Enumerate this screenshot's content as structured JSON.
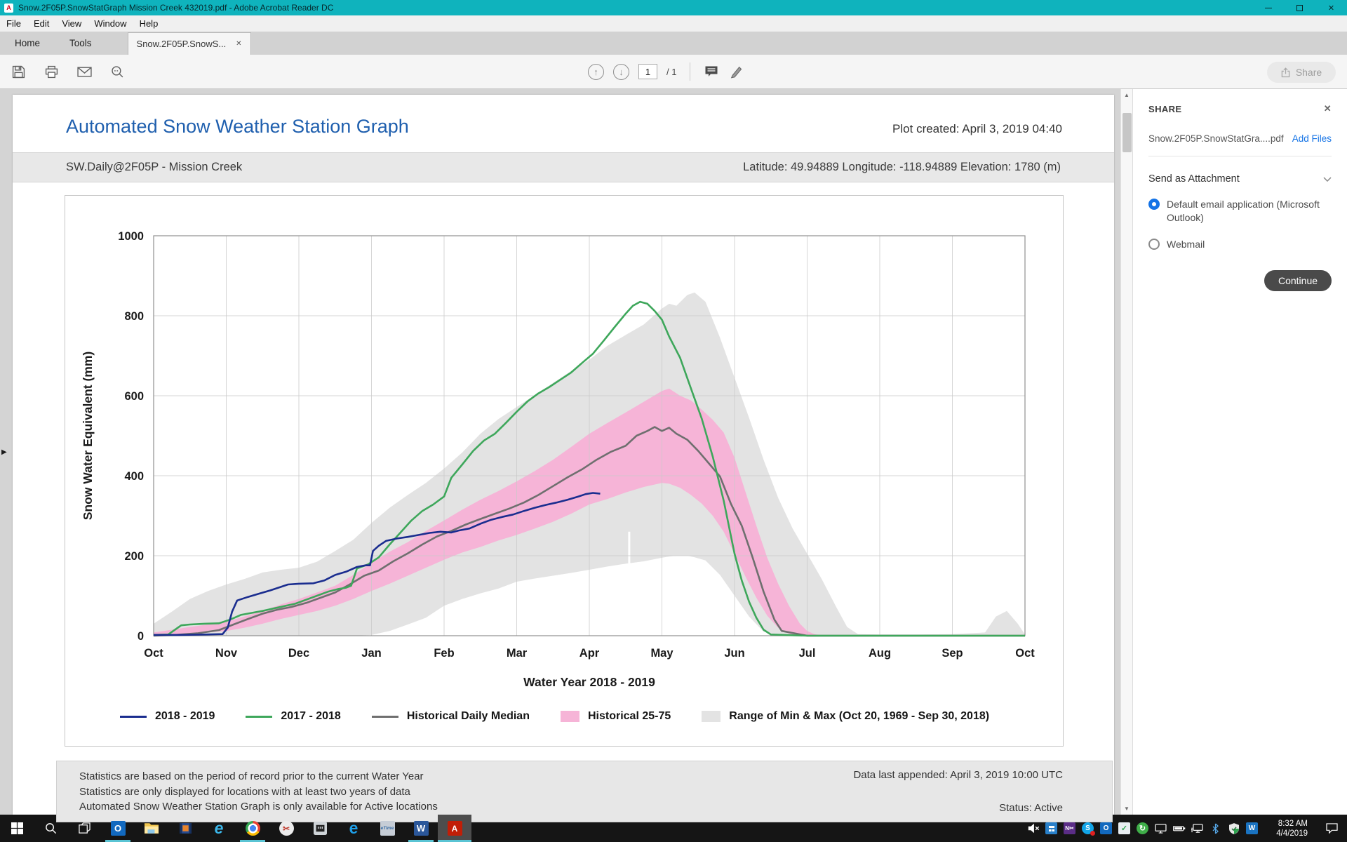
{
  "window": {
    "title": "Snow.2F05P.SnowStatGraph Mission Creek 432019.pdf - Adobe Acrobat Reader DC",
    "app_icon_letter": "A",
    "close_glyph": "✕"
  },
  "menu": {
    "items": [
      "File",
      "Edit",
      "View",
      "Window",
      "Help"
    ]
  },
  "tabs": {
    "home": "Home",
    "tools": "Tools",
    "document": "Snow.2F05P.SnowS...",
    "document_close": "✕"
  },
  "toolbar": {
    "page_current": "1",
    "page_total": "/ 1",
    "share_label": "Share"
  },
  "share_panel": {
    "header": "SHARE",
    "close": "✕",
    "file_name": "Snow.2F05P.SnowStatGra....pdf",
    "add_files_label": "Add Files",
    "section_label": "Send as Attachment",
    "options": [
      {
        "label": "Default email application (Microsoft Outlook)",
        "selected": true
      },
      {
        "label": "Webmail",
        "selected": false
      }
    ],
    "continue_label": "Continue"
  },
  "document": {
    "title": "Automated Snow Weather Station Graph",
    "plot_created": "Plot created: April 3, 2019 04:40",
    "station": "SW.Daily@2F05P - Mission Creek",
    "location": "Latitude: 49.94889 Longitude: -118.94889 Elevation: 1780 (m)",
    "footer_lines": [
      "Statistics are based on the period of record prior to the current Water Year",
      "Statistics are only displayed for locations with at least two years of data",
      "Automated Snow Weather Station Graph is only available for Active locations"
    ],
    "data_appended": "Data last appended: April 3, 2019 10:00 UTC",
    "status": "Status: Active"
  },
  "chart_data": {
    "type": "line",
    "title": "",
    "xlabel": "Water Year 2018 - 2019",
    "ylabel": "Snow Water Equivalent (mm)",
    "x_unit": "months after Oct 1",
    "x_ticks": [
      "Oct",
      "Nov",
      "Dec",
      "Jan",
      "Feb",
      "Mar",
      "Apr",
      "May",
      "Jun",
      "Jul",
      "Aug",
      "Sep",
      "Oct"
    ],
    "y_ticks": [
      0,
      200,
      400,
      600,
      800,
      1000
    ],
    "ylim": [
      0,
      1000
    ],
    "xlim": [
      0,
      12
    ],
    "grid": true,
    "legend_position": "bottom",
    "gap_line": {
      "x": 6.55,
      "y_top": 260
    },
    "bands": [
      {
        "name": "Range of Min & Max (Oct 20, 1969 - Sep 30, 2018)",
        "color": "#e3e3e3",
        "x": [
          0,
          0.25,
          0.5,
          0.75,
          1.0,
          1.25,
          1.5,
          1.75,
          2.0,
          2.25,
          2.5,
          2.75,
          3.0,
          3.25,
          3.5,
          3.75,
          4.0,
          4.25,
          4.5,
          4.75,
          5.0,
          5.25,
          5.5,
          5.75,
          6.0,
          6.25,
          6.5,
          6.75,
          7.0,
          7.1,
          7.2,
          7.35,
          7.45,
          7.6,
          7.8,
          8.0,
          8.2,
          8.4,
          8.6,
          8.8,
          9.0,
          9.2,
          9.4,
          9.55,
          9.7,
          10.0,
          10.5,
          11.0,
          11.45,
          11.6,
          11.75,
          11.9,
          12.0
        ],
        "upper": [
          30,
          60,
          92,
          112,
          128,
          142,
          158,
          165,
          170,
          185,
          212,
          240,
          282,
          320,
          352,
          382,
          418,
          458,
          505,
          542,
          572,
          602,
          632,
          662,
          690,
          725,
          752,
          778,
          818,
          830,
          825,
          852,
          858,
          835,
          745,
          645,
          545,
          440,
          345,
          268,
          205,
          142,
          72,
          22,
          4,
          3,
          3,
          4,
          8,
          48,
          62,
          30,
          3
        ],
        "lower": [
          0,
          0,
          0,
          0,
          0,
          0,
          0,
          0,
          0,
          0,
          0,
          0,
          2,
          12,
          28,
          45,
          75,
          92,
          106,
          118,
          135,
          143,
          150,
          157,
          165,
          173,
          180,
          186,
          195,
          198,
          200,
          200,
          196,
          188,
          152,
          100,
          48,
          10,
          0,
          0,
          0,
          0,
          0,
          0,
          0,
          0,
          0,
          0,
          0,
          0,
          0,
          0,
          0
        ]
      },
      {
        "name": "Historical 25-75",
        "color": "#f6b4d7",
        "x": [
          0,
          0.25,
          0.5,
          0.75,
          1.0,
          1.25,
          1.5,
          1.75,
          2.0,
          2.25,
          2.5,
          2.75,
          3.0,
          3.25,
          3.5,
          3.75,
          4.0,
          4.25,
          4.5,
          4.75,
          5.0,
          5.25,
          5.5,
          5.75,
          6.0,
          6.25,
          6.5,
          6.75,
          7.0,
          7.1,
          7.25,
          7.4,
          7.55,
          7.7,
          7.85,
          8.0,
          8.15,
          8.3,
          8.45,
          8.6,
          8.75,
          8.9,
          9.0,
          9.1,
          9.2,
          12.0
        ],
        "upper": [
          8,
          15,
          22,
          28,
          35,
          48,
          62,
          78,
          92,
          108,
          125,
          152,
          182,
          210,
          234,
          262,
          288,
          315,
          340,
          362,
          386,
          412,
          440,
          472,
          505,
          532,
          558,
          585,
          612,
          618,
          600,
          588,
          565,
          540,
          508,
          445,
          360,
          275,
          195,
          130,
          75,
          30,
          12,
          4,
          0,
          0
        ],
        "lower": [
          0,
          2,
          5,
          8,
          12,
          20,
          30,
          42,
          52,
          62,
          75,
          92,
          112,
          130,
          150,
          170,
          190,
          208,
          222,
          238,
          252,
          268,
          285,
          305,
          328,
          342,
          358,
          372,
          382,
          380,
          370,
          352,
          330,
          300,
          260,
          205,
          148,
          95,
          50,
          20,
          5,
          0,
          0,
          0,
          0,
          0
        ]
      }
    ],
    "series": [
      {
        "name": "Historical Daily Median",
        "color": "#6f6f6f",
        "x": [
          0,
          0.3,
          0.6,
          0.9,
          1.1,
          1.3,
          1.5,
          1.7,
          1.9,
          2.1,
          2.3,
          2.5,
          2.7,
          2.9,
          3.1,
          3.3,
          3.5,
          3.7,
          3.9,
          4.1,
          4.3,
          4.5,
          4.7,
          4.9,
          5.1,
          5.3,
          5.5,
          5.7,
          5.9,
          6.1,
          6.3,
          6.5,
          6.65,
          6.8,
          6.9,
          7.0,
          7.1,
          7.2,
          7.35,
          7.5,
          7.65,
          7.8,
          7.95,
          8.1,
          8.25,
          8.4,
          8.55,
          8.65,
          9.0,
          10.0,
          11.0,
          12.0
        ],
        "y": [
          0,
          2,
          6,
          14,
          28,
          42,
          55,
          65,
          72,
          82,
          95,
          108,
          128,
          150,
          163,
          186,
          206,
          228,
          248,
          262,
          278,
          292,
          305,
          318,
          333,
          352,
          374,
          396,
          416,
          440,
          460,
          475,
          500,
          512,
          522,
          512,
          520,
          505,
          490,
          462,
          430,
          398,
          330,
          275,
          195,
          110,
          40,
          12,
          0,
          0,
          0,
          0
        ]
      },
      {
        "name": "2017 - 2018",
        "color": "#3ea75b",
        "x": [
          0,
          0.2,
          0.38,
          0.5,
          0.7,
          0.9,
          1.05,
          1.2,
          1.35,
          1.5,
          1.65,
          1.8,
          1.95,
          2.1,
          2.25,
          2.4,
          2.55,
          2.65,
          2.72,
          2.8,
          2.95,
          3.1,
          3.25,
          3.4,
          3.55,
          3.7,
          3.85,
          4.0,
          4.1,
          4.25,
          4.4,
          4.55,
          4.7,
          4.85,
          5.0,
          5.15,
          5.3,
          5.45,
          5.6,
          5.75,
          5.9,
          6.05,
          6.2,
          6.35,
          6.5,
          6.6,
          6.7,
          6.8,
          6.9,
          7.0,
          7.1,
          7.25,
          7.4,
          7.55,
          7.7,
          7.85,
          8.0,
          8.1,
          8.2,
          8.3,
          8.4,
          8.5,
          9.0,
          10.0,
          11.0,
          12.0
        ],
        "y": [
          2,
          3,
          26,
          28,
          30,
          31,
          40,
          52,
          57,
          62,
          68,
          74,
          80,
          90,
          100,
          110,
          117,
          120,
          125,
          168,
          178,
          196,
          228,
          258,
          288,
          312,
          328,
          348,
          395,
          428,
          462,
          488,
          505,
          532,
          560,
          586,
          606,
          622,
          640,
          658,
          682,
          705,
          738,
          772,
          805,
          825,
          835,
          830,
          812,
          790,
          748,
          695,
          618,
          542,
          448,
          338,
          205,
          138,
          85,
          45,
          15,
          3,
          0,
          0,
          0,
          0
        ]
      },
      {
        "name": "2018 - 2019",
        "color": "#1a2d8f",
        "x": [
          0,
          0.35,
          0.7,
          0.95,
          1.02,
          1.08,
          1.15,
          1.3,
          1.45,
          1.6,
          1.75,
          1.85,
          2.0,
          2.2,
          2.35,
          2.5,
          2.65,
          2.8,
          2.92,
          2.98,
          3.02,
          3.1,
          3.2,
          3.35,
          3.5,
          3.65,
          3.8,
          3.95,
          4.1,
          4.2,
          4.35,
          4.5,
          4.65,
          4.8,
          4.95,
          5.1,
          5.25,
          5.4,
          5.55,
          5.7,
          5.85,
          5.95,
          6.05,
          6.15
        ],
        "y": [
          2,
          2,
          3,
          4,
          20,
          60,
          88,
          97,
          105,
          113,
          122,
          128,
          130,
          131,
          138,
          152,
          160,
          172,
          176,
          176,
          212,
          225,
          237,
          243,
          247,
          252,
          257,
          260,
          258,
          263,
          268,
          280,
          290,
          297,
          303,
          312,
          320,
          327,
          333,
          340,
          348,
          354,
          357,
          355
        ]
      }
    ],
    "legend": [
      {
        "label": "2018 - 2019",
        "swatch": "line",
        "color": "#1a2d8f"
      },
      {
        "label": "2017 - 2018",
        "swatch": "line",
        "color": "#3ea75b"
      },
      {
        "label": "Historical Daily Median",
        "swatch": "line",
        "color": "#6f6f6f"
      },
      {
        "label": "Historical 25-75",
        "swatch": "box",
        "color": "#f6b4d7"
      },
      {
        "label": "Range of Min & Max (Oct 20, 1969 - Sep 30, 2018)",
        "swatch": "box",
        "color": "#e3e3e3"
      }
    ]
  },
  "taskbar": {
    "apps": [
      {
        "name": "start"
      },
      {
        "name": "search"
      },
      {
        "name": "task-view"
      },
      {
        "name": "outlook",
        "running": true
      },
      {
        "name": "file-explorer"
      },
      {
        "name": "movies-tv"
      },
      {
        "name": "internet-explorer"
      },
      {
        "name": "chrome",
        "running": true
      },
      {
        "name": "snipping-tool"
      },
      {
        "name": "remote-port"
      },
      {
        "name": "edge"
      },
      {
        "name": "etime"
      },
      {
        "name": "word",
        "running": true
      },
      {
        "name": "acrobat",
        "running": true,
        "active": true
      }
    ],
    "tray": [
      "volume-muted",
      "vpn-app",
      "onenote-clipper",
      "skype",
      "outlook-tray",
      "sync-complete",
      "sync",
      "display",
      "battery",
      "network-display",
      "bluetooth",
      "windows-defender",
      "workday"
    ],
    "clock_time": "8:32 AM",
    "clock_date": "4/4/2019"
  },
  "colors": {
    "titlebar_teal": "#0fb3bd",
    "adobe_blue": "#1473e6",
    "doc_title_blue": "#1f5fae",
    "taskbar_underline": "#5ac4d4"
  }
}
